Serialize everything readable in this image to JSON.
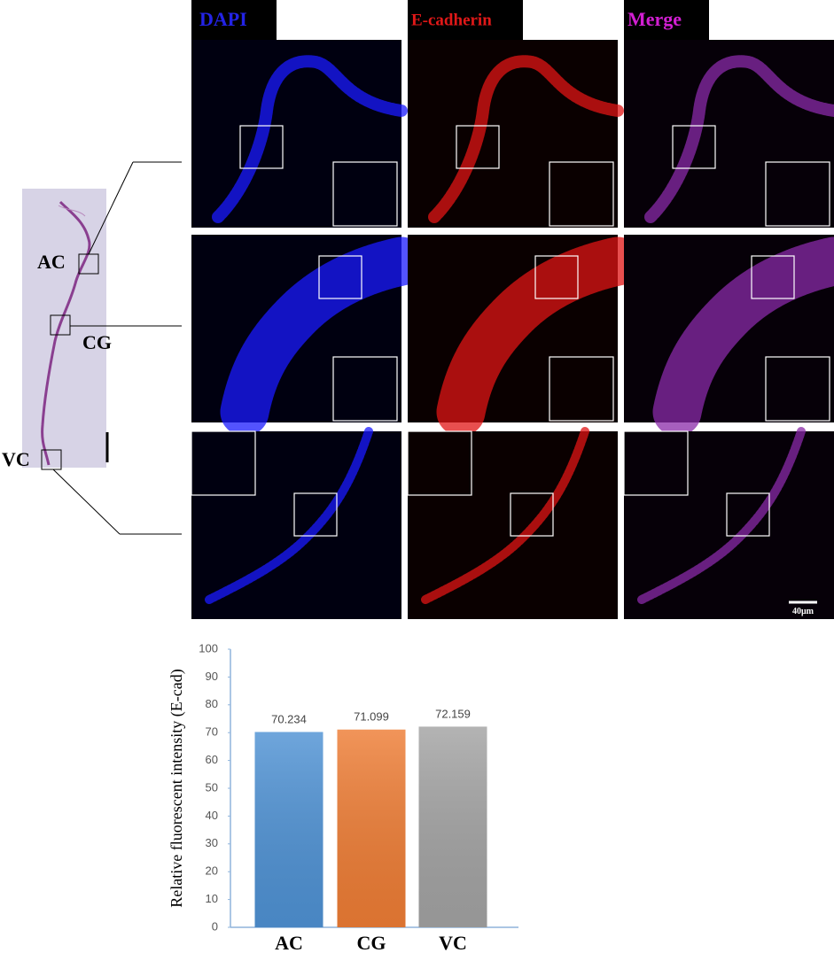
{
  "figure": {
    "stain_labels": [
      "DAPI",
      "E-cadherin",
      "Merge"
    ],
    "region_labels": [
      "AC",
      "CG",
      "VC"
    ],
    "scale_bar": "40μm"
  },
  "chart_data": {
    "type": "bar",
    "ylabel": "Relative fluorescent intensity (E-cad)",
    "categories": [
      "AC",
      "CG",
      "VC"
    ],
    "values": [
      70.234,
      71.099,
      72.159
    ],
    "colors": [
      "#4f92d4",
      "#ee7d35",
      "#a3a3a3"
    ],
    "ylim": [
      0,
      100
    ],
    "yticks": [
      0,
      10,
      20,
      30,
      40,
      50,
      60,
      70,
      80,
      90,
      100
    ],
    "show_value_labels": true
  }
}
